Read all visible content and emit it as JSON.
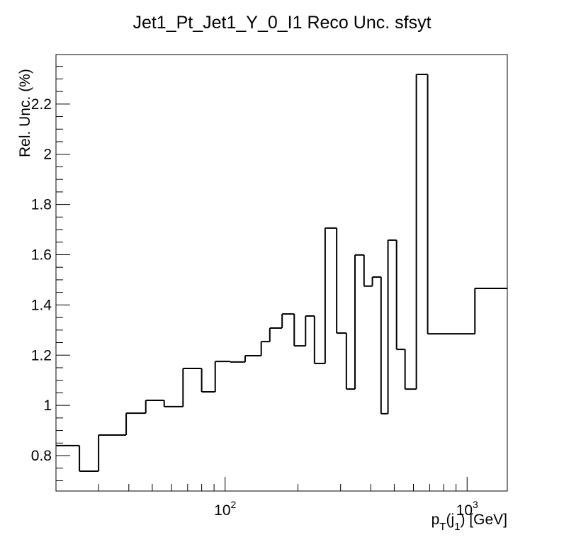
{
  "chart_data": {
    "type": "histogram",
    "title": "Jet1_Pt_Jet1_Y_0_I1 Reco Unc. sfsyt",
    "y_label": "Rel. Unc. (%)",
    "x_label_parts": [
      "p",
      "T",
      "(j",
      "1",
      ") [GeV]"
    ],
    "x_log": true,
    "color": "#000000",
    "bins": [
      20,
      25,
      30,
      39,
      47,
      56,
      67,
      80,
      91,
      105,
      121,
      141,
      153,
      172,
      193,
      215,
      234,
      259,
      289,
      317,
      344,
      375,
      406,
      441,
      471,
      511,
      554,
      617,
      687,
      1077,
      1466
    ],
    "values": [
      0.84,
      0.738,
      0.882,
      0.969,
      1.02,
      0.995,
      1.147,
      1.054,
      1.175,
      1.173,
      1.198,
      1.254,
      1.308,
      1.364,
      1.237,
      1.356,
      1.167,
      1.706,
      1.288,
      1.065,
      1.599,
      1.475,
      1.511,
      0.967,
      1.658,
      1.223,
      1.065,
      2.318,
      1.285,
      1.466
    ],
    "xlim": [
      20,
      1466
    ],
    "ylim": [
      0.659,
      2.397
    ],
    "xticks": [
      {
        "value": 100,
        "label": "10",
        "exponent": "2"
      },
      {
        "value": 1000,
        "label": "10",
        "exponent": "3"
      }
    ],
    "xminorticks": [
      30,
      40,
      50,
      60,
      70,
      80,
      90,
      200,
      300,
      400,
      500,
      600,
      700,
      800,
      900
    ],
    "yticks": [
      {
        "value": 0.8,
        "label": "0.8"
      },
      1,
      {
        "value": 1.2,
        "label": "1.2"
      },
      {
        "value": 1.4,
        "label": "1.4"
      },
      {
        "value": 1.6,
        "label": "1.6"
      },
      {
        "value": 1.8,
        "label": "1.8"
      },
      2,
      {
        "value": 2.2,
        "label": "2.2"
      }
    ],
    "yminorticks": [
      0.7,
      0.75,
      0.85,
      0.9,
      0.95,
      1.05,
      1.1,
      1.15,
      1.25,
      1.3,
      1.35,
      1.45,
      1.5,
      1.55,
      1.65,
      1.7,
      1.75,
      1.85,
      1.9,
      1.95,
      2.05,
      2.1,
      2.15,
      2.25,
      2.3,
      2.35
    ]
  }
}
